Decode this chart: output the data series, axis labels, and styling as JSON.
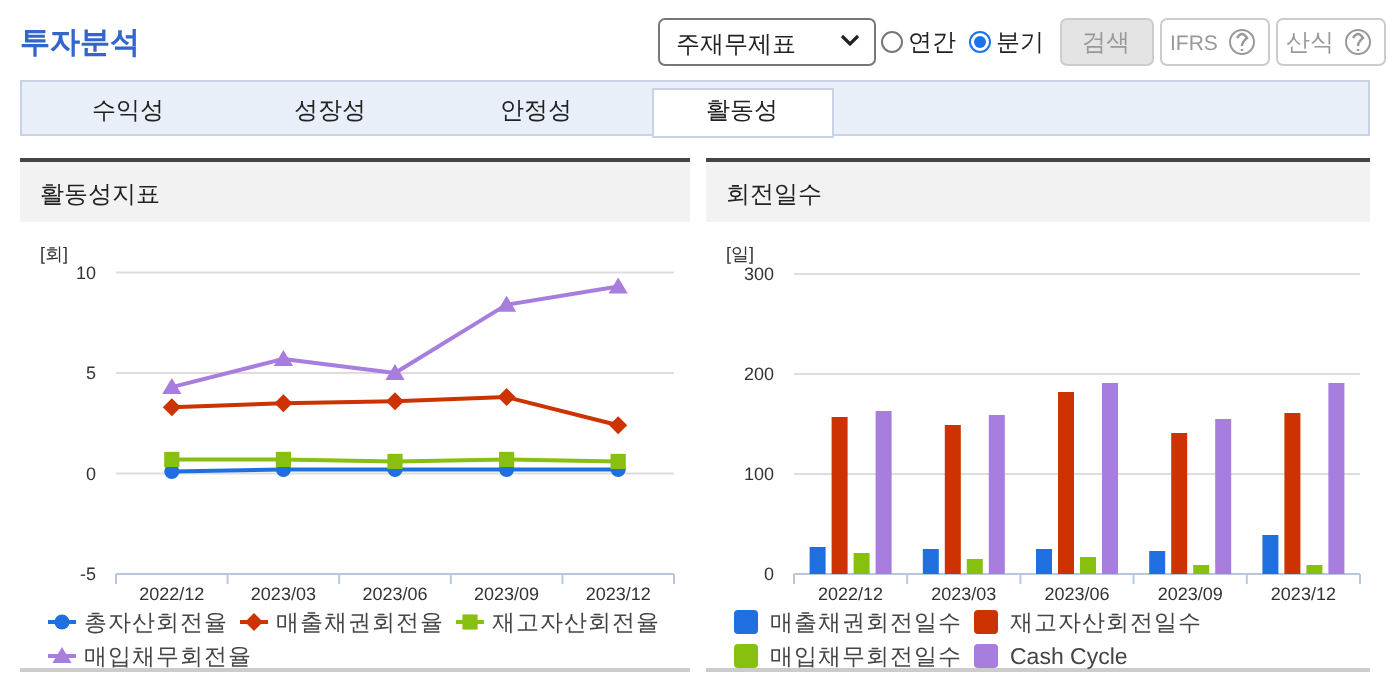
{
  "chart_data": [
    {
      "type": "other",
      "title": "투자분석",
      "annotations": [
        "주재무제표",
        "연간",
        "분기",
        "검색",
        "IFRS",
        "산식",
        "수익성",
        "성장성",
        "안정성",
        "활동성"
      ]
    },
    {
      "type": "line",
      "title": "활동성지표",
      "ylabel": "[회]",
      "categories": [
        "2022/12",
        "2023/03",
        "2023/06",
        "2023/09",
        "2023/12"
      ],
      "ylim": [
        -5,
        10
      ],
      "yticks": [
        -5,
        0,
        5,
        10
      ],
      "grid": "y",
      "legend": "bottom",
      "series": [
        {
          "name": "총자산회전율",
          "color": "#1f6fe0",
          "marker": "circle",
          "values": [
            0.1,
            0.2,
            0.2,
            0.2,
            0.2
          ]
        },
        {
          "name": "매출채권회전율",
          "color": "#cc3300",
          "marker": "diamond",
          "values": [
            3.3,
            3.5,
            3.6,
            3.8,
            2.4
          ]
        },
        {
          "name": "재고자산회전율",
          "color": "#88c010",
          "marker": "square",
          "values": [
            0.7,
            0.7,
            0.6,
            0.7,
            0.6
          ]
        },
        {
          "name": "매입채무회전율",
          "color": "#a77ddd",
          "marker": "triangle",
          "values": [
            4.3,
            5.7,
            5.0,
            8.4,
            9.3
          ]
        }
      ]
    },
    {
      "type": "bar",
      "title": "회전일수",
      "ylabel": "[일]",
      "categories": [
        "2022/12",
        "2023/03",
        "2023/06",
        "2023/09",
        "2023/12"
      ],
      "ylim": [
        0,
        300
      ],
      "yticks": [
        0,
        100,
        200,
        300
      ],
      "grid": "y",
      "legend": "bottom",
      "series": [
        {
          "name": "매출채권회전일수",
          "color": "#1f6fe0",
          "values": [
            27,
            25,
            25,
            23,
            39
          ]
        },
        {
          "name": "재고자산회전일수",
          "color": "#cc3300",
          "values": [
            157,
            149,
            182,
            141,
            161
          ]
        },
        {
          "name": "매입채무회전일수",
          "color": "#88c010",
          "values": [
            21,
            15,
            17,
            9,
            9
          ]
        },
        {
          "name": "Cash Cycle",
          "color": "#a77ddd",
          "values": [
            163,
            159,
            191,
            155,
            191
          ]
        }
      ]
    }
  ]
}
